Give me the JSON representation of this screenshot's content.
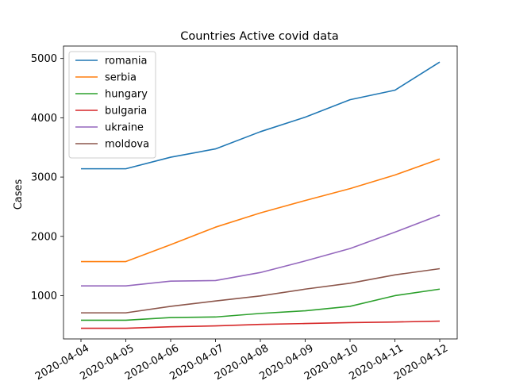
{
  "chart_data": {
    "type": "line",
    "title": "Countries Active covid data",
    "xlabel": "",
    "ylabel": "Cases",
    "x": [
      "2020-04-04",
      "2020-04-05",
      "2020-04-06",
      "2020-04-07",
      "2020-04-08",
      "2020-04-09",
      "2020-04-10",
      "2020-04-11",
      "2020-04-12"
    ],
    "yticks": [
      1000,
      2000,
      3000,
      4000,
      5000
    ],
    "ylim": [
      270,
      5210
    ],
    "legend_position": "top-left",
    "grid": false,
    "series": [
      {
        "name": "romania",
        "color": "#1f77b4",
        "values": [
          3140,
          3140,
          3335,
          3475,
          3765,
          4010,
          4305,
          4465,
          4940
        ]
      },
      {
        "name": "serbia",
        "color": "#ff7f0e",
        "values": [
          1575,
          1575,
          1860,
          2155,
          2395,
          2605,
          2805,
          3035,
          3305
        ]
      },
      {
        "name": "hungary",
        "color": "#2ca02c",
        "values": [
          585,
          585,
          630,
          640,
          700,
          745,
          820,
          1000,
          1110
        ]
      },
      {
        "name": "bulgaria",
        "color": "#d62728",
        "values": [
          450,
          450,
          475,
          490,
          515,
          530,
          545,
          555,
          570
        ]
      },
      {
        "name": "ukraine",
        "color": "#9467bd",
        "values": [
          1165,
          1165,
          1245,
          1255,
          1390,
          1585,
          1795,
          2070,
          2360
        ]
      },
      {
        "name": "moldova",
        "color": "#8c564b",
        "values": [
          710,
          710,
          820,
          910,
          995,
          1110,
          1210,
          1350,
          1455
        ]
      }
    ]
  }
}
